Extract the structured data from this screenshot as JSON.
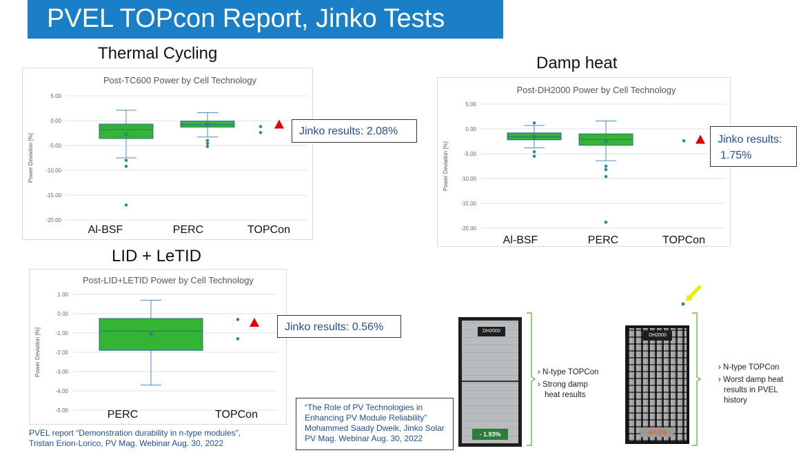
{
  "slide": {
    "title": "PVEL TOPcon Report, Jinko Tests"
  },
  "sections": {
    "thermal_cycling": "Thermal Cycling",
    "damp_heat": "Damp heat",
    "lid_letid": "LID + LeTID"
  },
  "callouts": {
    "tc": "Jinko results: 2.08%",
    "dh_line1": "Jinko results:",
    "dh_line2": "1.75%",
    "lid": "Jinko results: 0.56%"
  },
  "citations": {
    "pvel_line1": "PVEL report “Demonstration durability in n-type modules”,",
    "pvel_line2": "Tristan Erion-Lorico, PV Mag. Webinar Aug. 30, 2022",
    "jinko_line1": "“The Role of PV Technologies in",
    "jinko_line2": "Enhancing PV Module Reliability”",
    "jinko_line3": "Mohammed Saady Dweik,  Jinko Solar",
    "jinko_line4": " PV Mag. Webinar Aug. 30, 2022"
  },
  "images": {
    "left_tag": "DH2000",
    "left_value": "- 1.93%",
    "left_bullet1": "› N-type TOPCon",
    "left_bullet2": "› Strong damp",
    "left_bullet3": "heat results",
    "right_tag": "DH2000",
    "right_value": "-67.5%",
    "right_bullet1": "› N-type TOPCon",
    "right_bullet2": "› Worst damp heat",
    "right_bullet3": "results in PVEL",
    "right_bullet4": "history"
  },
  "colors": {
    "title_bg": "#1a7fc7",
    "box_fill": "#33b533",
    "whisker": "#4a8ac4",
    "outlier": "#2e8b8b",
    "marker": "#e00000",
    "callout_text": "#1f4e9c"
  },
  "chart_data": [
    {
      "type": "box",
      "title": "Post-TC600 Power by Cell Technology",
      "ylabel": "Power Deviation [%]",
      "ylim": [
        -20,
        5
      ],
      "yticks": [
        "5.00",
        "0.00",
        "-5.00",
        "-10.00",
        "-15.00",
        "-20.00"
      ],
      "categories": [
        "Al-BSF",
        "PERC",
        "TOPCon"
      ],
      "boxes": [
        {
          "category": "Al-BSF",
          "min": -7.5,
          "q1": -3.6,
          "median": -1.8,
          "q3": -0.7,
          "max": 2.1,
          "mean": -2.7,
          "outliers": [
            -8.0,
            -9.2,
            -17.0
          ]
        },
        {
          "category": "PERC",
          "min": -3.3,
          "q1": -1.3,
          "median": -0.8,
          "q3": -0.1,
          "max": 1.6,
          "mean": -0.8,
          "outliers": [
            -4.0,
            -4.6,
            -5.2
          ]
        },
        {
          "category": "TOPCon",
          "points": [
            -1.2,
            -2.4
          ]
        }
      ],
      "marker_value": -0.9
    },
    {
      "type": "box",
      "title": "Post-DH2000 Power by Cell Technology",
      "ylabel": "Power Deviation [%]",
      "ylim": [
        -20,
        5
      ],
      "yticks": [
        "5.00",
        "0.00",
        "-5.00",
        "-10.00",
        "-15.00",
        "-20.00"
      ],
      "categories": [
        "Al-BSF",
        "PERC",
        "TOPCon"
      ],
      "boxes": [
        {
          "category": "Al-BSF",
          "min": -3.8,
          "q1": -2.2,
          "median": -1.6,
          "q3": -0.8,
          "max": 0.7,
          "mean": -1.6,
          "outliers": [
            1.2,
            -4.6,
            -5.5
          ]
        },
        {
          "category": "PERC",
          "min": -6.4,
          "q1": -3.3,
          "median": -2.1,
          "q3": -1.0,
          "max": 1.6,
          "mean": -2.5,
          "outliers": [
            -7.5,
            -8.2,
            -9.6,
            -18.8
          ]
        },
        {
          "category": "TOPCon",
          "points": [
            -2.4
          ]
        }
      ],
      "marker_value": -2.3
    },
    {
      "type": "box",
      "title": "Post-LID+LETID Power by Cell Technology",
      "ylabel": "Power Deviation [%]",
      "ylim": [
        -5,
        1
      ],
      "yticks": [
        "1.00",
        "0.00",
        "-1.00",
        "-2.00",
        "-3.00",
        "-4.00",
        "-5.00"
      ],
      "categories": [
        "PERC",
        "TOPCon"
      ],
      "boxes": [
        {
          "category": "PERC",
          "min": -3.7,
          "q1": -1.9,
          "median": -0.9,
          "q3": -0.25,
          "max": 0.7,
          "mean": -1.05,
          "outliers": []
        },
        {
          "category": "TOPCon",
          "points": [
            -0.3,
            -1.3
          ]
        }
      ],
      "marker_value": -0.5
    }
  ]
}
